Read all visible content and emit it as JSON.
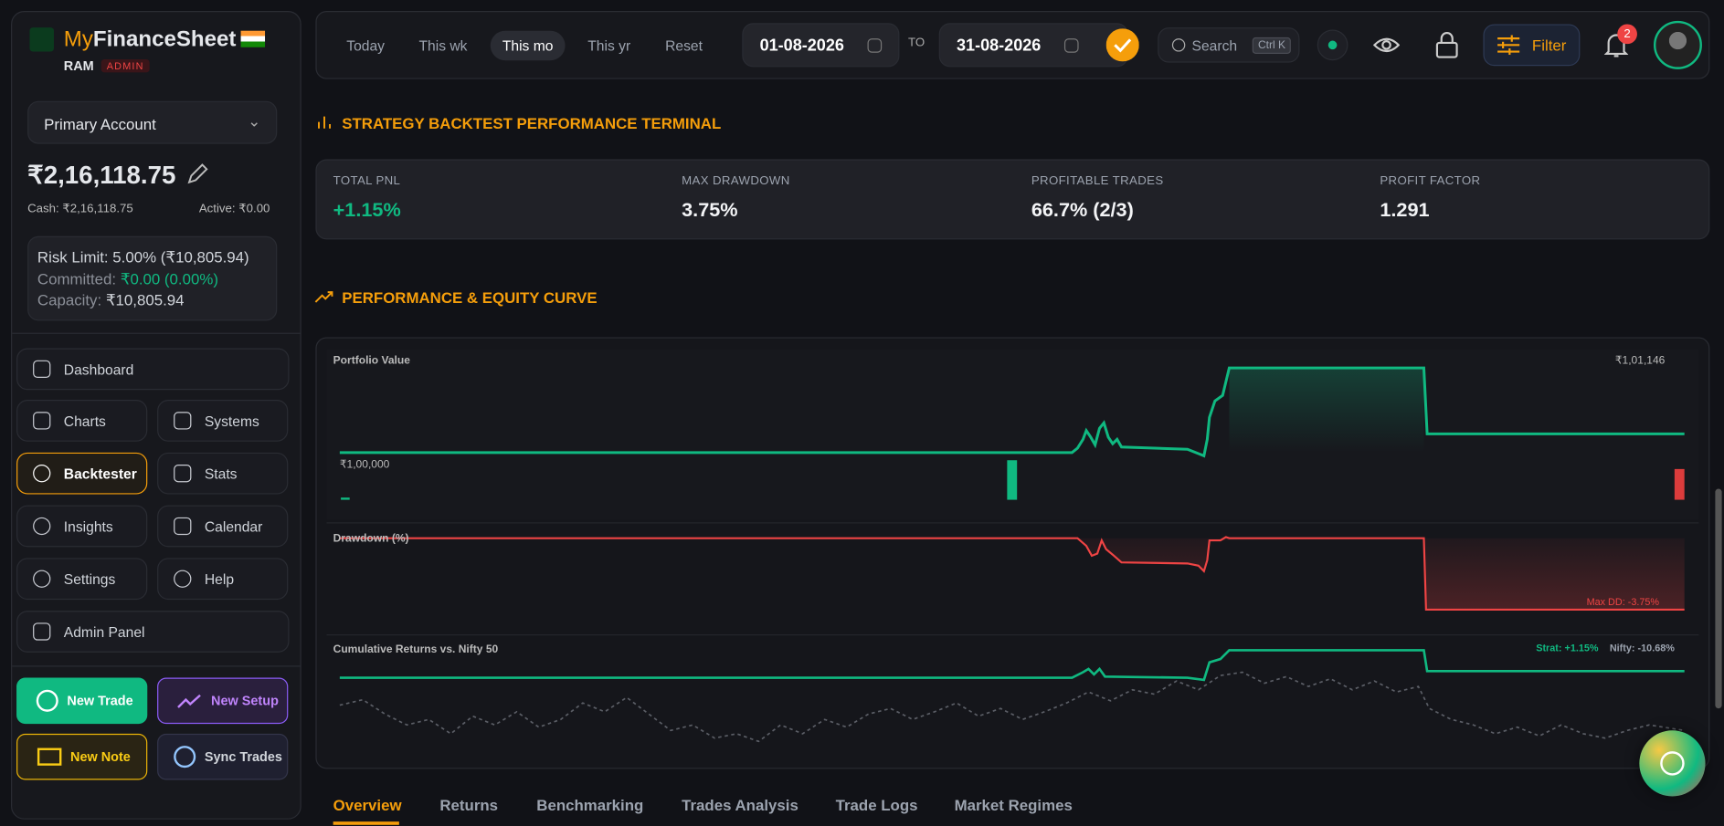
{
  "sidebar": {
    "brand": {
      "prefix": "My",
      "name": "FinanceSheet"
    },
    "user": "RAM",
    "role": "ADMIN",
    "account": "Primary Account",
    "balance": "₹2,16,118.75",
    "cash": "Cash: ₹2,16,118.75",
    "active": "Active: ₹0.00",
    "risk": {
      "limit": "Risk Limit: 5.00% (₹10,805.94)",
      "committed_label": "Committed:",
      "committed_value": "₹0.00 (0.00%)",
      "capacity_label": "Capacity:",
      "capacity_value": "₹10,805.94"
    },
    "nav": [
      "Dashboard",
      "Charts",
      "Systems",
      "Backtester",
      "Stats",
      "Insights",
      "Calendar",
      "Settings",
      "Help",
      "Admin Panel"
    ],
    "actions": [
      "New Trade",
      "New Setup",
      "New Note",
      "Sync Trades"
    ]
  },
  "topbar": {
    "ranges": [
      "Today",
      "This wk",
      "This mo",
      "This yr",
      "Reset"
    ],
    "from": "01-08-2026",
    "to_label": "TO",
    "to": "31-08-2026",
    "search": "Search",
    "shortcut": "Ctrl K",
    "filter": "Filter",
    "notifications": "2"
  },
  "terminal": {
    "title": "STRATEGY BACKTEST PERFORMANCE TERMINAL",
    "metrics": [
      {
        "label": "TOTAL PNL",
        "value": "+1.15%"
      },
      {
        "label": "MAX DRAWDOWN",
        "value": "3.75%"
      },
      {
        "label": "PROFITABLE TRADES",
        "value": "66.7% (2/3)"
      },
      {
        "label": "PROFIT FACTOR",
        "value": "1.291"
      }
    ]
  },
  "equity": {
    "title": "PERFORMANCE & EQUITY CURVE",
    "portfolio_title": "Portfolio Value",
    "portfolio_high": "₹1,01,146",
    "portfolio_base": "₹1,00,000",
    "drawdown_title": "Drawdown (%)",
    "max_dd": "Max DD: -3.75%",
    "returns_title": "Cumulative Returns vs. Nifty 50",
    "strat": "Strat: +1.15%",
    "nifty": "Nifty: -10.68%"
  },
  "tabs": [
    "Overview",
    "Returns",
    "Benchmarking",
    "Trades Analysis",
    "Trade Logs",
    "Market Regimes"
  ]
}
